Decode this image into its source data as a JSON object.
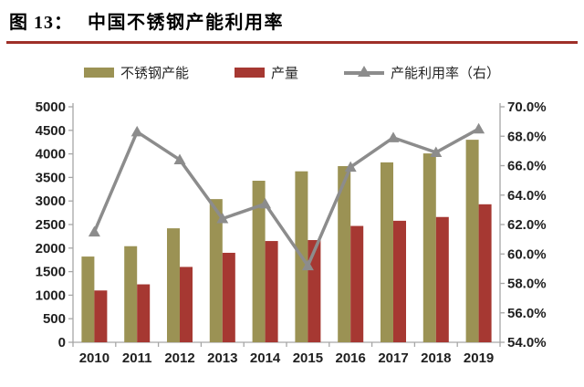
{
  "figure": {
    "label": "图 13：",
    "title": "中国不锈钢产能利用率"
  },
  "legend": {
    "items": [
      {
        "label": "不锈钢产能",
        "swatch": "bar",
        "color": "#9B9254"
      },
      {
        "label": "产量",
        "swatch": "bar",
        "color": "#A63832"
      },
      {
        "label": "产能利用率（右）",
        "swatch": "line-triangle",
        "color": "#8C8C8C"
      }
    ]
  },
  "colors": {
    "capacity_bar": "#9B9254",
    "production_bar": "#A63832",
    "utilization_line": "#8C8C8C",
    "title_rule": "#9E2F28",
    "axis": "#A6A6A6",
    "text": "#1F1F1F"
  },
  "chart_data": {
    "type": "bar+line",
    "title": "中国不锈钢产能利用率",
    "categories": [
      "2010",
      "2011",
      "2012",
      "2013",
      "2014",
      "2015",
      "2016",
      "2017",
      "2018",
      "2019"
    ],
    "series": [
      {
        "name": "不锈钢产能",
        "kind": "bar",
        "axis": "left",
        "color": "#9B9254",
        "values": [
          1820,
          2040,
          2420,
          3040,
          3430,
          3630,
          3740,
          3820,
          4010,
          4300
        ]
      },
      {
        "name": "产量",
        "kind": "bar",
        "axis": "left",
        "color": "#A63832",
        "values": [
          1100,
          1230,
          1600,
          1900,
          2150,
          2170,
          2470,
          2580,
          2660,
          2930
        ]
      },
      {
        "name": "产能利用率（右）",
        "kind": "line",
        "axis": "right",
        "color": "#8C8C8C",
        "marker": "triangle",
        "values": [
          61.5,
          68.3,
          66.4,
          62.4,
          63.4,
          59.2,
          65.9,
          67.9,
          66.9,
          68.5
        ]
      }
    ],
    "left_axis": {
      "min": 0,
      "max": 5000,
      "step": 500,
      "tick_labels": [
        "5000",
        "4500",
        "4000",
        "3500",
        "3000",
        "2500",
        "2000",
        "1500",
        "1000",
        "500",
        "0"
      ]
    },
    "right_axis": {
      "min": 54,
      "max": 70,
      "step": 2,
      "format": "percent",
      "tick_labels": [
        "70.0%",
        "68.0%",
        "66.0%",
        "64.0%",
        "62.0%",
        "60.0%",
        "58.0%",
        "56.0%",
        "54.0%"
      ]
    },
    "grid": false,
    "legend_position": "top"
  }
}
